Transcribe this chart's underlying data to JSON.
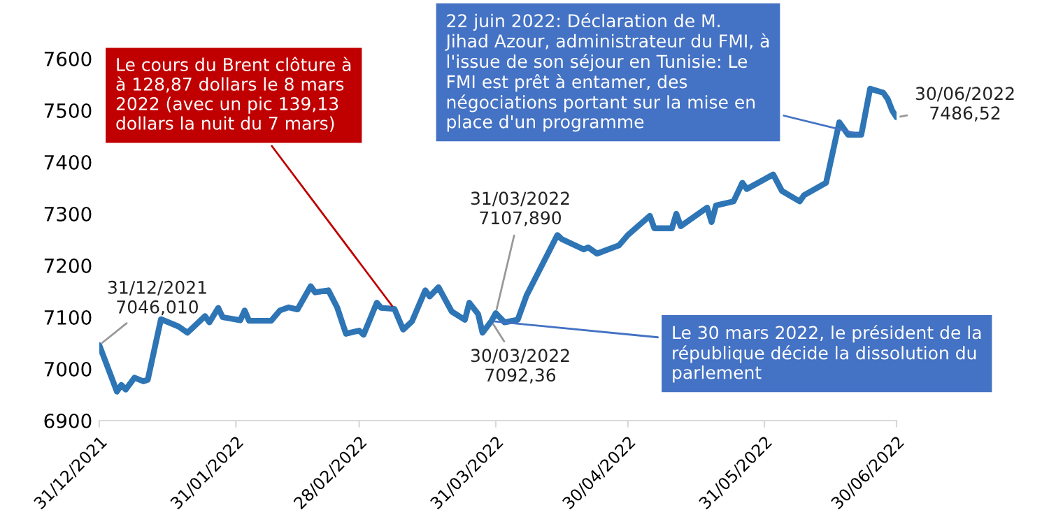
{
  "chart_data": {
    "type": "line",
    "x": [
      "2021-12-31",
      "2022-01-04",
      "2022-01-05",
      "2022-01-06",
      "2022-01-08",
      "2022-01-10",
      "2022-01-11",
      "2022-01-14",
      "2022-01-18",
      "2022-01-20",
      "2022-01-24",
      "2022-01-25",
      "2022-01-27",
      "2022-01-28",
      "2022-02-01",
      "2022-02-02",
      "2022-02-03",
      "2022-02-08",
      "2022-02-10",
      "2022-02-12",
      "2022-02-14",
      "2022-02-17",
      "2022-02-18",
      "2022-02-21",
      "2022-02-23",
      "2022-02-25",
      "2022-02-28",
      "2022-03-01",
      "2022-03-04",
      "2022-03-05",
      "2022-03-08",
      "2022-03-10",
      "2022-03-12",
      "2022-03-15",
      "2022-03-16",
      "2022-03-18",
      "2022-03-21",
      "2022-03-24",
      "2022-03-25",
      "2022-03-27",
      "2022-03-28",
      "2022-03-30",
      "2022-03-31",
      "2022-04-02",
      "2022-04-05",
      "2022-04-07",
      "2022-04-14",
      "2022-04-15",
      "2022-04-20",
      "2022-04-21",
      "2022-04-23",
      "2022-04-28",
      "2022-04-30",
      "2022-05-05",
      "2022-05-06",
      "2022-05-10",
      "2022-05-11",
      "2022-05-12",
      "2022-05-18",
      "2022-05-19",
      "2022-05-20",
      "2022-05-24",
      "2022-05-26",
      "2022-05-27",
      "2022-06-02",
      "2022-06-04",
      "2022-06-08",
      "2022-06-09",
      "2022-06-14",
      "2022-06-17",
      "2022-06-19",
      "2022-06-22",
      "2022-06-24",
      "2022-06-27",
      "2022-06-28",
      "2022-06-29",
      "2022-06-30"
    ],
    "series": [
      {
        "color": "#2e75b6",
        "values": [
          7046.01,
          6956,
          6969,
          6960,
          6983,
          6976,
          6979,
          7096,
          7082,
          7070,
          7102,
          7090,
          7118,
          7100,
          7094,
          7113,
          7093,
          7093,
          7113,
          7119,
          7115,
          7160,
          7148,
          7152,
          7119,
          7068,
          7074,
          7066,
          7128,
          7118,
          7116,
          7076,
          7092,
          7152,
          7140,
          7158,
          7111,
          7095,
          7128,
          7106,
          7070,
          7092.36,
          7107.89,
          7090,
          7095,
          7142,
          7259,
          7251,
          7231,
          7235,
          7223,
          7239,
          7259,
          7296,
          7272,
          7272,
          7300,
          7276,
          7312,
          7284,
          7316,
          7324,
          7360,
          7348,
          7376,
          7344,
          7324,
          7336,
          7360,
          7477,
          7453,
          7453,
          7542,
          7534,
          7522,
          7500,
          7486.52
        ]
      }
    ],
    "ylim": [
      6900,
      7600
    ],
    "yticks": [
      6900,
      7000,
      7100,
      7200,
      7300,
      7400,
      7500,
      7600
    ],
    "xlim": [
      "2021-12-31",
      "2022-06-30"
    ],
    "xticks": [
      {
        "value": "2021-12-31",
        "label": "31/12/2021"
      },
      {
        "value": "2022-01-31",
        "label": "31/01/2022"
      },
      {
        "value": "2022-02-28",
        "label": "28/02/2022"
      },
      {
        "value": "2022-03-31",
        "label": "31/03/2022"
      },
      {
        "value": "2022-04-30",
        "label": "30/04/2022"
      },
      {
        "value": "2022-05-31",
        "label": "31/05/2022"
      },
      {
        "value": "2022-06-30",
        "label": "30/06/2022"
      }
    ],
    "grid": false,
    "legend": false,
    "annotations": [
      {
        "text": "Le cours du Brent clôture à\nà 128,87 dollars le 8 mars\n2022 (avec un pic 139,13\ndollars la nuit du 7 mars)",
        "x": "2022-03-08",
        "y": 7116
      },
      {
        "text": "22 juin 2022: Déclaration de M.\nJihad Azour, administrateur du FMI, à\nl'issue de son séjour en Tunisie: Le\nFMI est prêt à entamer, des\nnégociations portant sur la mise en\nplace d'un programme",
        "x": "2022-06-22",
        "y": 7453
      },
      {
        "text": "Le 30 mars 2022, le président de la\nrépublique décide la dissolution du\nparlement",
        "x": "2022-03-30",
        "y": 7092.36
      },
      {
        "text": "31/12/2021\n7046,010",
        "x": "2021-12-31",
        "y": 7046.01
      },
      {
        "text": "31/03/2022\n7107,890",
        "x": "2022-03-31",
        "y": 7107.89
      },
      {
        "text": "30/03/2022\n7092,36",
        "x": "2022-03-30",
        "y": 7092.36
      },
      {
        "text": "30/06/2022\n7486,52",
        "x": "2022-06-30",
        "y": 7486.52
      }
    ]
  }
}
